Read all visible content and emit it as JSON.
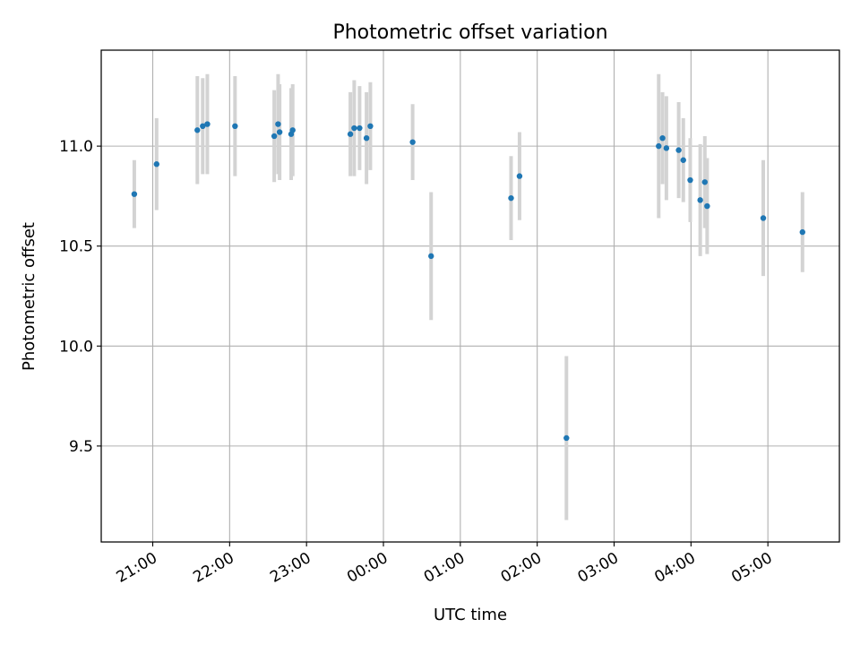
{
  "chart_data": {
    "type": "scatter",
    "title": "Photometric offset variation",
    "xlabel": "UTC time",
    "ylabel": "Photometric offset",
    "x_ticks": [
      "21:00",
      "22:00",
      "23:00",
      "00:00",
      "01:00",
      "02:00",
      "03:00",
      "04:00",
      "05:00"
    ],
    "x_tick_hours": [
      21,
      22,
      23,
      24,
      25,
      26,
      27,
      28,
      29
    ],
    "y_ticks": [
      "9.5",
      "10.0",
      "10.5",
      "11.0"
    ],
    "y_tick_values": [
      9.5,
      10.0,
      10.5,
      11.0
    ],
    "xlim_hours": [
      20.33,
      29.93
    ],
    "ylim": [
      9.02,
      11.48
    ],
    "grid": true,
    "colors": {
      "points": "#1f77b4",
      "errorbars": "#d3d3d3",
      "grid": "#b0b0b0"
    },
    "series": [
      {
        "x_hours": [
          20.76,
          21.05,
          21.58,
          21.65,
          21.71,
          22.07,
          22.58,
          22.63,
          22.65,
          22.8,
          22.82,
          23.57,
          23.62,
          23.69,
          23.78,
          23.83,
          24.38,
          24.62,
          25.66,
          25.77,
          26.38,
          27.58,
          27.63,
          27.68,
          27.84,
          27.9,
          27.99,
          28.12,
          28.18,
          28.21,
          28.94,
          29.45
        ],
        "y": [
          10.76,
          10.91,
          11.08,
          11.1,
          11.11,
          11.1,
          11.05,
          11.11,
          11.07,
          11.06,
          11.08,
          11.06,
          11.09,
          11.09,
          11.04,
          11.1,
          11.02,
          10.45,
          10.74,
          10.85,
          9.54,
          11.0,
          11.04,
          10.99,
          10.98,
          10.93,
          10.83,
          10.73,
          10.82,
          10.7,
          10.64,
          10.57
        ],
        "yerr": [
          0.17,
          0.23,
          0.27,
          0.24,
          0.25,
          0.25,
          0.23,
          0.25,
          0.24,
          0.23,
          0.23,
          0.21,
          0.24,
          0.21,
          0.23,
          0.22,
          0.19,
          0.32,
          0.21,
          0.22,
          0.41,
          0.36,
          0.23,
          0.26,
          0.24,
          0.21,
          0.21,
          0.28,
          0.23,
          0.24,
          0.29,
          0.2
        ]
      }
    ]
  }
}
